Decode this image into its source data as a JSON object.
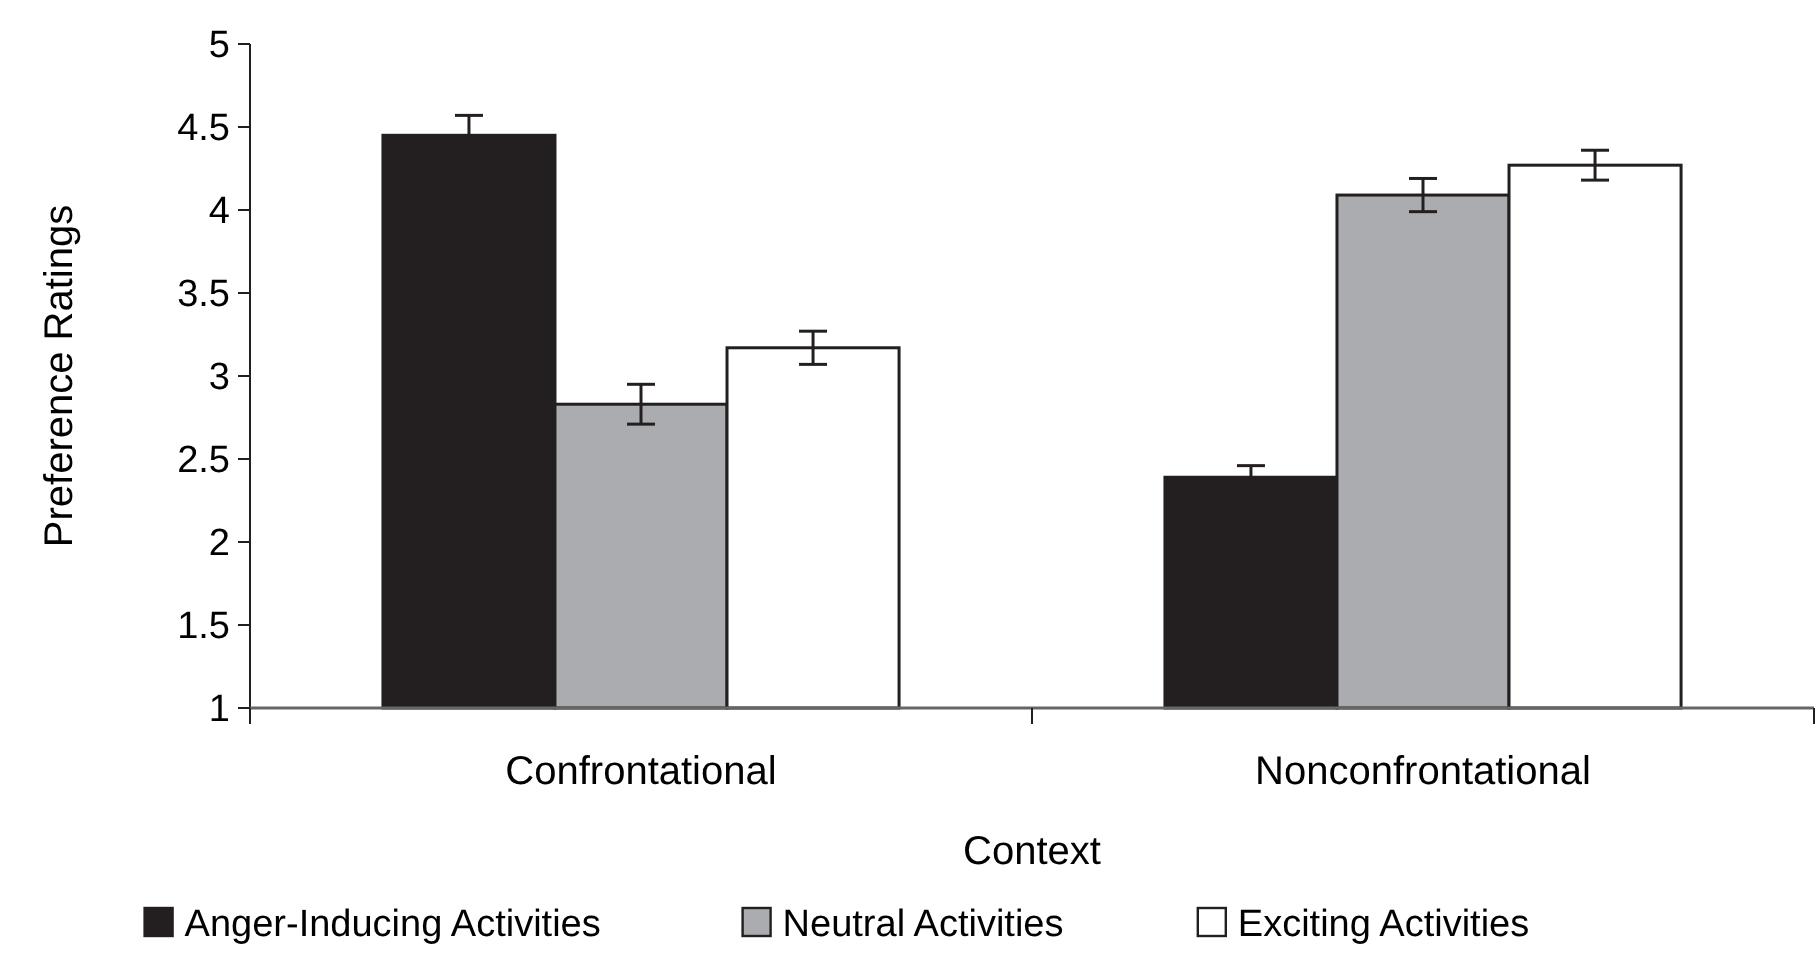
{
  "chart_data": {
    "type": "bar",
    "xlabel": "Context",
    "ylabel": "Preference Ratings",
    "categories": [
      "Confrontational",
      "Nonconfrontational"
    ],
    "series": [
      {
        "name": "Anger-Inducing Activities",
        "color": "#231f20",
        "values": [
          4.45,
          2.39
        ],
        "errors": [
          0.12,
          0.07
        ]
      },
      {
        "name": "Neutral Activities",
        "color": "#abacaf",
        "values": [
          2.83,
          4.09
        ],
        "errors": [
          0.12,
          0.1
        ]
      },
      {
        "name": "Exciting Activities",
        "color": "#ffffff",
        "values": [
          3.17,
          4.27
        ],
        "errors": [
          0.1,
          0.09
        ]
      }
    ],
    "ylim": [
      1,
      5
    ],
    "yticks": [
      1,
      1.5,
      2,
      2.5,
      3,
      3.5,
      4,
      4.5,
      5
    ],
    "grid": false,
    "legend": "bottom"
  }
}
